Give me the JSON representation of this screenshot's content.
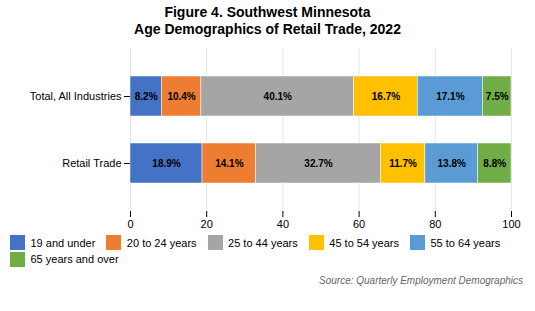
{
  "chart_data": {
    "type": "bar",
    "orientation": "horizontal",
    "stacked": true,
    "title": "Figure 4. Southwest Minnesota\nAge Demographics of Retail Trade, 2022",
    "categories": [
      "Total, All Industries",
      "Retail Trade"
    ],
    "series": [
      {
        "name": "19 and under",
        "color": "#4472C4",
        "values": [
          8.2,
          18.9
        ],
        "value_labels": [
          "8.2%",
          "18.9%"
        ]
      },
      {
        "name": "20 to 24 years",
        "color": "#ED7D31",
        "values": [
          10.4,
          14.1
        ],
        "value_labels": [
          "10.4%",
          "14.1%"
        ]
      },
      {
        "name": "25 to 44 years",
        "color": "#A5A5A5",
        "values": [
          40.1,
          32.7
        ],
        "value_labels": [
          "40.1%",
          "32.7%"
        ]
      },
      {
        "name": "45 to 54 years",
        "color": "#FFC000",
        "values": [
          16.7,
          11.7
        ],
        "value_labels": [
          "16.7%",
          "11.7%"
        ]
      },
      {
        "name": "55 to 64 years",
        "color": "#5B9BD5",
        "values": [
          17.1,
          13.8
        ],
        "value_labels": [
          "17.1%",
          "13.8%"
        ]
      },
      {
        "name": "65 years and over",
        "color": "#70AD47",
        "values": [
          7.5,
          8.8
        ],
        "value_labels": [
          "7.5%",
          "8.8%"
        ]
      }
    ],
    "xlim": [
      0,
      100
    ],
    "xticks": [
      0,
      20,
      40,
      60,
      80,
      100
    ],
    "grid": true,
    "data_labels": true,
    "legend": "bottom",
    "annotations": [
      "Source: Quarterly Employment Demographics"
    ]
  }
}
